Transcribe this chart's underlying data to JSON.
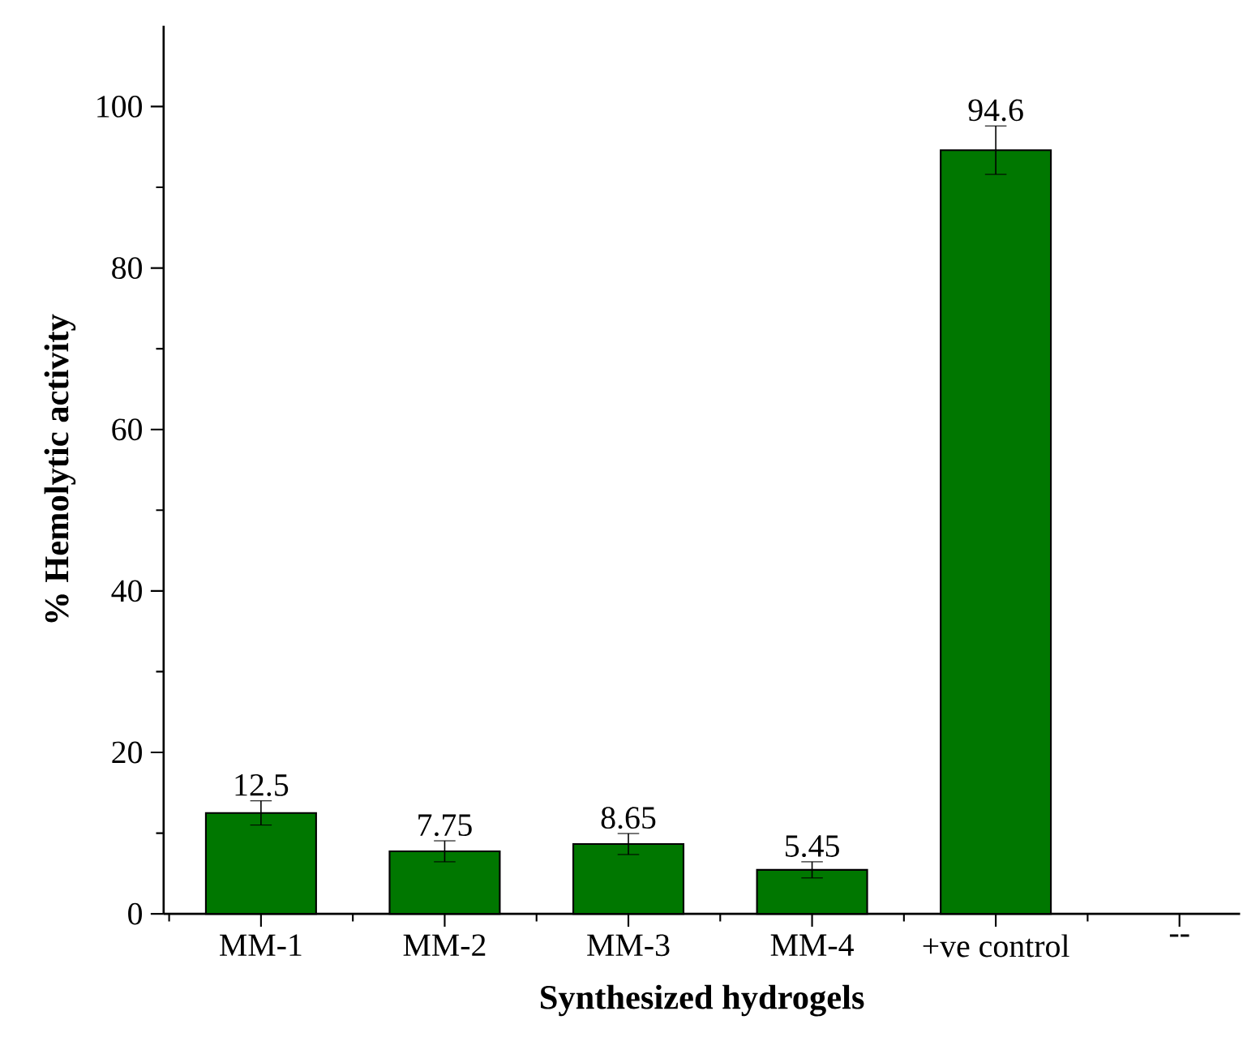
{
  "chart_data": {
    "type": "bar",
    "xlabel": "Synthesized hydrogels",
    "ylabel": "% Hemolytic activity",
    "categories": [
      "MM-1",
      "MM-2",
      "MM-3",
      "MM-4",
      "+ve control",
      "--"
    ],
    "values": [
      12.5,
      7.75,
      8.65,
      5.45,
      94.6,
      null
    ],
    "errors": [
      1.5,
      1.3,
      1.3,
      1.0,
      3.0,
      null
    ],
    "color": "#007700",
    "ylim": [
      0,
      110
    ],
    "yticks": [
      0,
      20,
      40,
      60,
      80,
      100
    ],
    "data_labels": true
  }
}
